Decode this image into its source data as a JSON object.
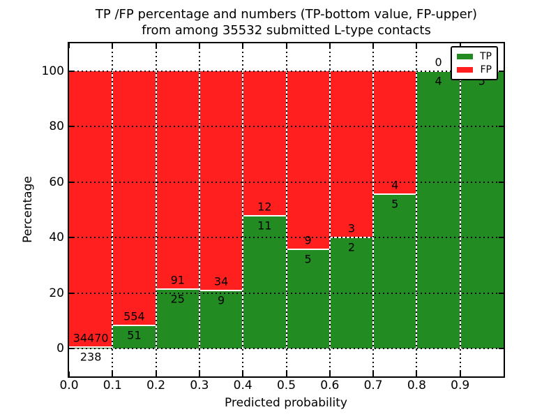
{
  "figure": {
    "title_line1": "TP /FP percentage and numbers (TP-bottom value, FP-upper)",
    "title_line2": "from among 35532 submitted L-type contacts",
    "xlabel": "Predicted probability",
    "ylabel": "Percentage"
  },
  "legend": {
    "items": [
      {
        "label": "TP",
        "color": "#228b22"
      },
      {
        "label": "FP",
        "color": "#ff1f1f"
      }
    ]
  },
  "chart_data": {
    "type": "bar",
    "variant": "stacked-percentage",
    "title": "TP /FP percentage and numbers (TP-bottom value, FP-upper) from among 35532 submitted L-type contacts",
    "xlabel": "Predicted probability",
    "ylabel": "Percentage",
    "total_contacts": 35532,
    "xlim": [
      0.0,
      1.0
    ],
    "ylim": [
      -10,
      110
    ],
    "x_tick_labels": [
      "0.0",
      "0.1",
      "0.2",
      "0.3",
      "0.4",
      "0.5",
      "0.6",
      "0.7",
      "0.8",
      "0.9"
    ],
    "y_tick_values": [
      0,
      20,
      40,
      60,
      80,
      100
    ],
    "grid": "dotted",
    "legend_position": "upper right",
    "series": [
      {
        "name": "TP",
        "color": "#228b22",
        "position": "bottom"
      },
      {
        "name": "FP",
        "color": "#ff1f1f",
        "position": "upper"
      }
    ],
    "bins": [
      {
        "x0": 0.0,
        "x1": 0.1,
        "tp_count": 238,
        "fp_count": 34470,
        "tp_pct": 0.69,
        "fp_pct": 99.31
      },
      {
        "x0": 0.1,
        "x1": 0.2,
        "tp_count": 51,
        "fp_count": 554,
        "tp_pct": 8.43,
        "fp_pct": 91.57
      },
      {
        "x0": 0.2,
        "x1": 0.3,
        "tp_count": 25,
        "fp_count": 91,
        "tp_pct": 21.55,
        "fp_pct": 78.45
      },
      {
        "x0": 0.3,
        "x1": 0.4,
        "tp_count": 9,
        "fp_count": 34,
        "tp_pct": 20.93,
        "fp_pct": 79.07
      },
      {
        "x0": 0.4,
        "x1": 0.5,
        "tp_count": 11,
        "fp_count": 12,
        "tp_pct": 47.83,
        "fp_pct": 52.17
      },
      {
        "x0": 0.5,
        "x1": 0.6,
        "tp_count": 5,
        "fp_count": 9,
        "tp_pct": 35.71,
        "fp_pct": 64.29
      },
      {
        "x0": 0.6,
        "x1": 0.7,
        "tp_count": 2,
        "fp_count": 3,
        "tp_pct": 40.0,
        "fp_pct": 60.0
      },
      {
        "x0": 0.7,
        "x1": 0.8,
        "tp_count": 5,
        "fp_count": 4,
        "tp_pct": 55.56,
        "fp_pct": 44.44
      },
      {
        "x0": 0.8,
        "x1": 0.9,
        "tp_count": 4,
        "fp_count": 0,
        "tp_pct": 100.0,
        "fp_pct": 0.0
      },
      {
        "x0": 0.9,
        "x1": 1.0,
        "tp_count": 5,
        "fp_count": 0,
        "tp_pct": 100.0,
        "fp_pct": 0.0
      }
    ]
  }
}
